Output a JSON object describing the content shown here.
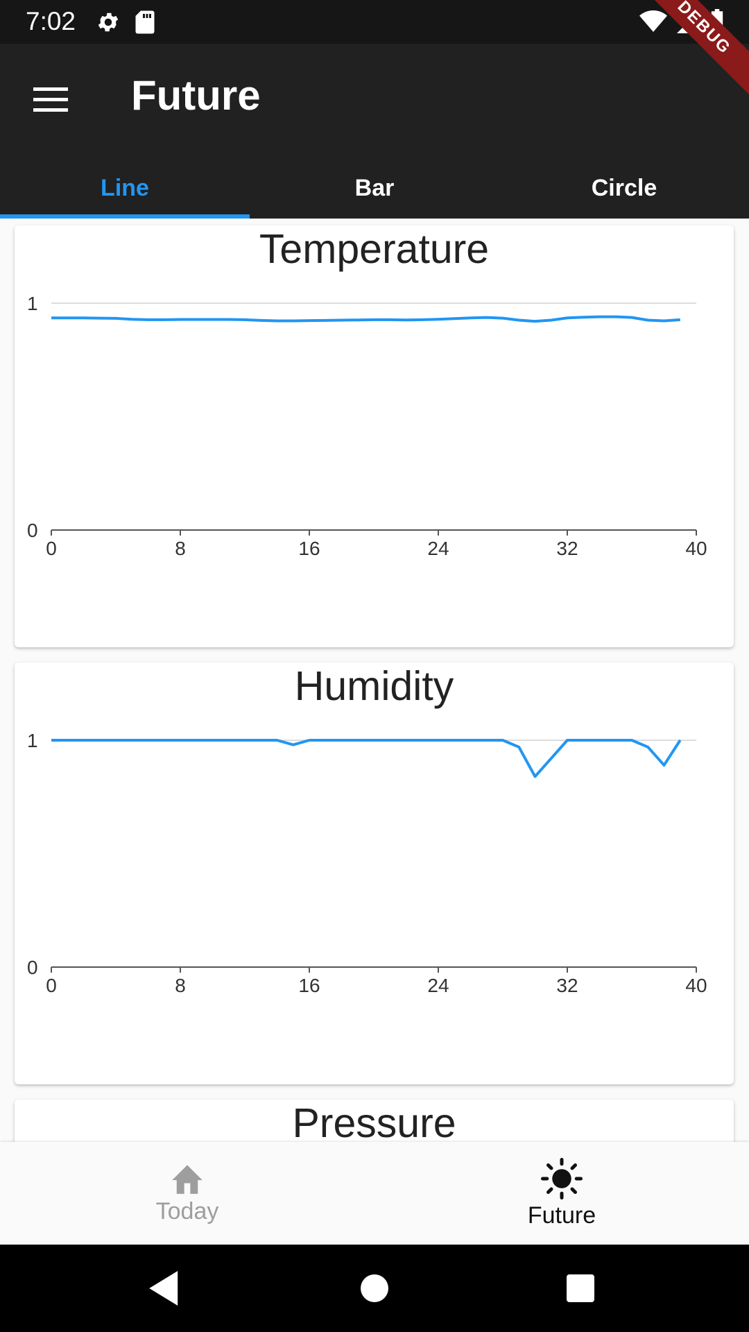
{
  "status_bar": {
    "time": "7:02"
  },
  "app_bar": {
    "title": "Future",
    "debug_label": "DEBUG"
  },
  "tabs": [
    {
      "label": "Line",
      "active": true
    },
    {
      "label": "Bar",
      "active": false
    },
    {
      "label": "Circle",
      "active": false
    }
  ],
  "colors": {
    "accent": "#2196F3",
    "app_bar": "#212121",
    "status_bar": "#161616"
  },
  "chart_data": [
    {
      "type": "line",
      "title": "Temperature",
      "xlim": [
        0,
        40
      ],
      "ylim": [
        0,
        1
      ],
      "x_ticks": [
        "0",
        "8",
        "16",
        "24",
        "32",
        "40"
      ],
      "y_ticks": [
        "0",
        "1"
      ],
      "x": [
        0,
        1,
        2,
        3,
        4,
        5,
        6,
        7,
        8,
        9,
        10,
        11,
        12,
        13,
        14,
        15,
        16,
        17,
        18,
        19,
        20,
        21,
        22,
        23,
        24,
        25,
        26,
        27,
        28,
        29,
        30,
        31,
        32,
        33,
        34,
        35,
        36,
        37,
        38,
        39
      ],
      "y": [
        0.935,
        0.935,
        0.935,
        0.934,
        0.933,
        0.929,
        0.927,
        0.927,
        0.928,
        0.928,
        0.928,
        0.928,
        0.927,
        0.924,
        0.922,
        0.922,
        0.923,
        0.924,
        0.925,
        0.926,
        0.927,
        0.927,
        0.926,
        0.927,
        0.929,
        0.932,
        0.935,
        0.937,
        0.934,
        0.925,
        0.92,
        0.925,
        0.935,
        0.938,
        0.94,
        0.94,
        0.937,
        0.925,
        0.922,
        0.927
      ],
      "grid": true,
      "color": "#2196F3"
    },
    {
      "type": "line",
      "title": "Humidity",
      "xlim": [
        0,
        40
      ],
      "ylim": [
        0,
        1
      ],
      "x_ticks": [
        "0",
        "8",
        "16",
        "24",
        "32",
        "40"
      ],
      "y_ticks": [
        "0",
        "1"
      ],
      "x": [
        0,
        1,
        2,
        3,
        4,
        5,
        6,
        7,
        8,
        9,
        10,
        11,
        12,
        13,
        14,
        15,
        16,
        17,
        18,
        19,
        20,
        21,
        22,
        23,
        24,
        25,
        26,
        27,
        28,
        29,
        30,
        31,
        32,
        33,
        34,
        35,
        36,
        37,
        38,
        39
      ],
      "y": [
        1,
        1,
        1,
        1,
        1,
        1,
        1,
        1,
        1,
        1,
        1,
        1,
        1,
        1,
        1,
        0.98,
        1,
        1,
        1,
        1,
        1,
        1,
        1,
        1,
        1,
        1,
        1,
        1,
        1,
        0.97,
        0.84,
        0.92,
        1,
        1,
        1,
        1,
        1,
        0.97,
        0.89,
        1
      ],
      "grid": true,
      "color": "#2196F3"
    },
    {
      "type": "line",
      "title": "Pressure"
    }
  ],
  "bottom_nav": [
    {
      "label": "Today",
      "icon": "home-icon",
      "active": false
    },
    {
      "label": "Future",
      "icon": "sun-icon",
      "active": true
    }
  ]
}
